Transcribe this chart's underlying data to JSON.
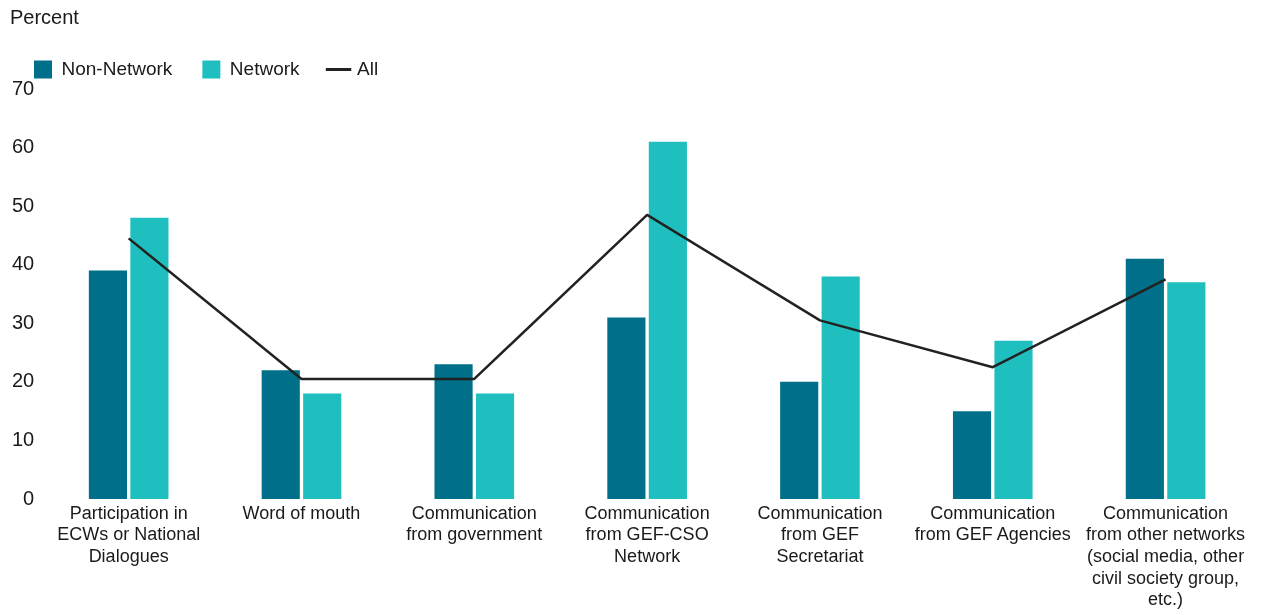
{
  "chart_data": {
    "type": "bar",
    "ylabel": "Percent",
    "categories": [
      "Participation in ECWs or National Dialogues",
      "Word of mouth",
      "Communication from government",
      "Communication from GEF-CSO Network",
      "Communication from GEF Secretariat",
      "Communication from GEF Agencies",
      "Communication from other networks (social media, other civil society group, etc.)"
    ],
    "series": [
      {
        "name": "Non-Network",
        "color": "#006f8a",
        "values": [
          39,
          22,
          23,
          31,
          20,
          15,
          41
        ]
      },
      {
        "name": "Network",
        "color": "#1fbfbf",
        "values": [
          48,
          18,
          18,
          61,
          38,
          27,
          37
        ]
      },
      {
        "name": "All",
        "type": "line",
        "color": "#222222",
        "values": [
          44.5,
          20.5,
          20.5,
          48.5,
          30.5,
          22.5,
          37.5
        ]
      }
    ],
    "ylim": [
      0,
      70
    ],
    "yticks": [
      0,
      10,
      20,
      30,
      40,
      50,
      60,
      70
    ],
    "grid": false,
    "legend": "top left",
    "marker": "none"
  }
}
